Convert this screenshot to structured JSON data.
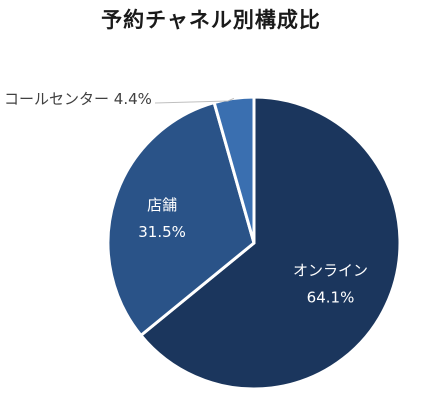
{
  "chart_data": {
    "type": "pie",
    "title": "予約チャネル別構成比",
    "slices": [
      {
        "label": "オンライン",
        "value": 64.1,
        "value_label": "64.1%",
        "color": "#1b365d",
        "text_color": "#ffffff",
        "label_position": "inside"
      },
      {
        "label": "店舗",
        "value": 31.5,
        "value_label": "31.5%",
        "color": "#2a5388",
        "text_color": "#ffffff",
        "label_position": "inside"
      },
      {
        "label": "コールセンター",
        "value": 4.4,
        "value_label": "4.4%",
        "color": "#3a6fb0",
        "text_color": "#404040",
        "label_position": "outside-left"
      }
    ],
    "start_angle": "12 o'clock",
    "direction": "clockwise",
    "legend": "none"
  }
}
